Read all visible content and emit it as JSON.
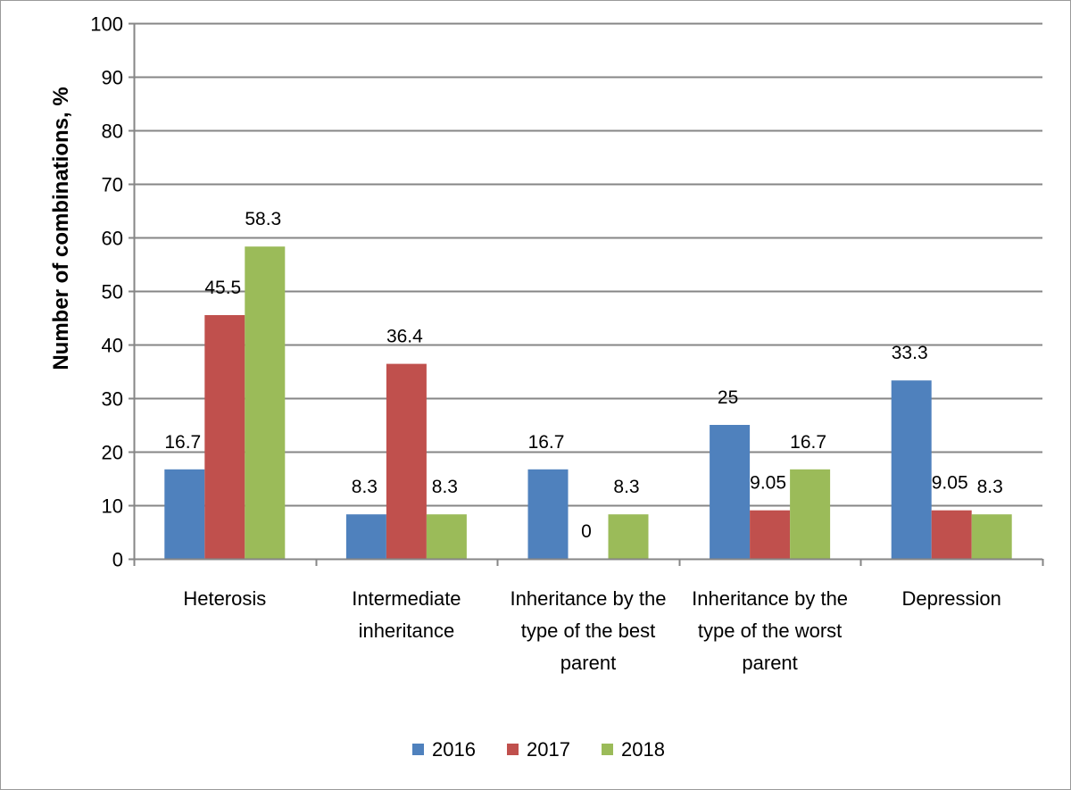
{
  "chart_data": {
    "type": "bar",
    "title": "",
    "xlabel": "",
    "ylabel": "Number of combinations, %",
    "ylim": [
      0,
      100
    ],
    "yticks": [
      0,
      10,
      20,
      30,
      40,
      50,
      60,
      70,
      80,
      90,
      100
    ],
    "grid": true,
    "legend_position": "bottom",
    "categories": [
      [
        "Heterosis"
      ],
      [
        "Intermediate",
        "inheritance"
      ],
      [
        "Inheritance by the",
        "type of the best",
        "parent"
      ],
      [
        "Inheritance by the",
        "type of the worst",
        "parent"
      ],
      [
        "Depression"
      ]
    ],
    "series": [
      {
        "name": "2016",
        "color": "#4f81bd",
        "values": [
          16.7,
          8.3,
          16.7,
          25,
          33.3
        ],
        "labels": [
          "16.7",
          "8.3",
          "16.7",
          "25",
          "33.3"
        ]
      },
      {
        "name": "2017",
        "color": "#c0504d",
        "values": [
          45.5,
          36.4,
          0,
          9.05,
          9.05
        ],
        "labels": [
          "45.5",
          "36.4",
          "0",
          "9.05",
          "9.05"
        ]
      },
      {
        "name": "2018",
        "color": "#9bbb59",
        "values": [
          58.3,
          8.3,
          8.3,
          16.7,
          8.3
        ],
        "labels": [
          "58.3",
          "8.3",
          "8.3",
          "16.7",
          "8.3"
        ]
      }
    ]
  }
}
